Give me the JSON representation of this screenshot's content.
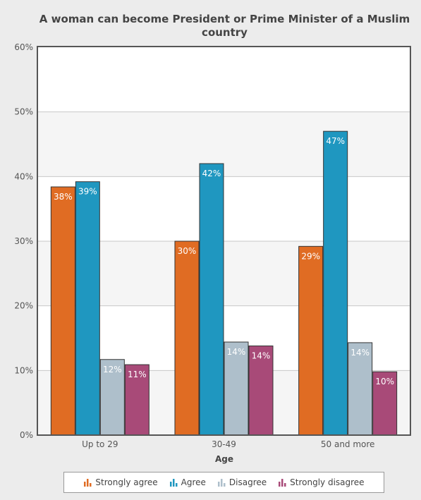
{
  "chart_data": {
    "type": "bar",
    "title": "A woman can become President or Prime Minister of a Muslim country",
    "xlabel": "Age",
    "ylabel": "",
    "categories": [
      "Up to 29",
      "30-49",
      "50 and more"
    ],
    "ylim": [
      0,
      60
    ],
    "yticks": [
      "0%",
      "10%",
      "20%",
      "30%",
      "40%",
      "50%",
      "60%"
    ],
    "grid": true,
    "legend_position": "bottom",
    "series": [
      {
        "name": "Strongly agree",
        "color": "#e06c23",
        "values": [
          38.4,
          30.0,
          29.2
        ],
        "labels": [
          "38%",
          "30%",
          "29%"
        ]
      },
      {
        "name": "Agree",
        "color": "#1f97c0",
        "values": [
          39.2,
          42.0,
          47.0
        ],
        "labels": [
          "39%",
          "42%",
          "47%"
        ]
      },
      {
        "name": "Disagree",
        "color": "#aebfcb",
        "values": [
          11.7,
          14.4,
          14.3
        ],
        "labels": [
          "12%",
          "14%",
          "14%"
        ]
      },
      {
        "name": "Strongly disagree",
        "color": "#a84a78",
        "values": [
          10.9,
          13.8,
          9.8
        ],
        "labels": [
          "11%",
          "14%",
          "10%"
        ]
      }
    ]
  }
}
